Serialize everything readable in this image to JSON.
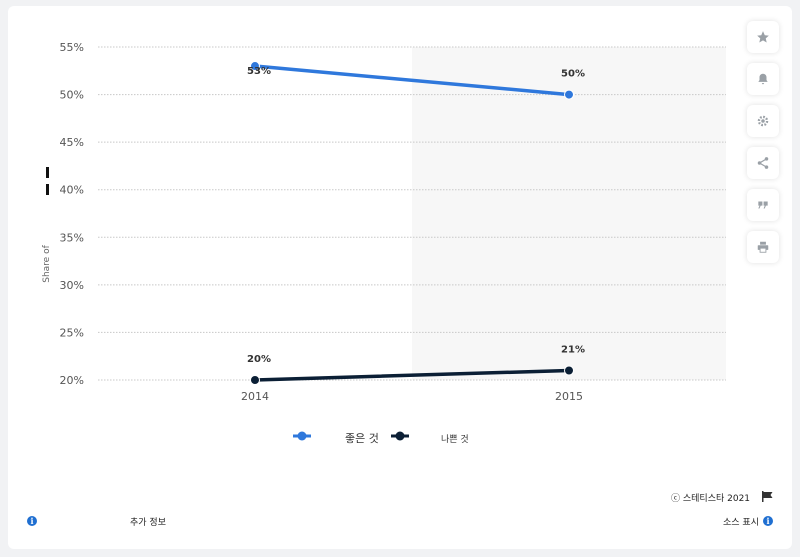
{
  "chart_data": {
    "type": "line",
    "categories": [
      "2014",
      "2015"
    ],
    "series": [
      {
        "name": "좋은 것",
        "values": [
          53,
          50
        ],
        "labels": [
          "53%",
          "50%"
        ],
        "color": "#2f78dc"
      },
      {
        "name": "나쁜 것",
        "values": [
          20,
          21
        ],
        "labels": [
          "20%",
          "21%"
        ],
        "color": "#0b1f35"
      }
    ],
    "ylim": [
      20,
      55
    ],
    "yticks": [
      "55%",
      "50%",
      "45%",
      "40%",
      "35%",
      "30%",
      "25%",
      "20%"
    ],
    "ytick_values": [
      55,
      50,
      45,
      40,
      35,
      30,
      25,
      20
    ],
    "ylabel": "Share of",
    "xlabel": "",
    "title": "",
    "grid": true,
    "legend_position": "bottom"
  },
  "legend": {
    "good_label": "좋은 것",
    "bad_label": "나쁜 것"
  },
  "footer": {
    "copyright": "ⓒ  스테티스타 2021",
    "more_info": "추가 정보",
    "source": "소스 표시"
  },
  "sidebar": {
    "icons": [
      "star-icon",
      "bell-icon",
      "gear-icon",
      "share-icon",
      "quote-icon",
      "print-icon"
    ]
  }
}
